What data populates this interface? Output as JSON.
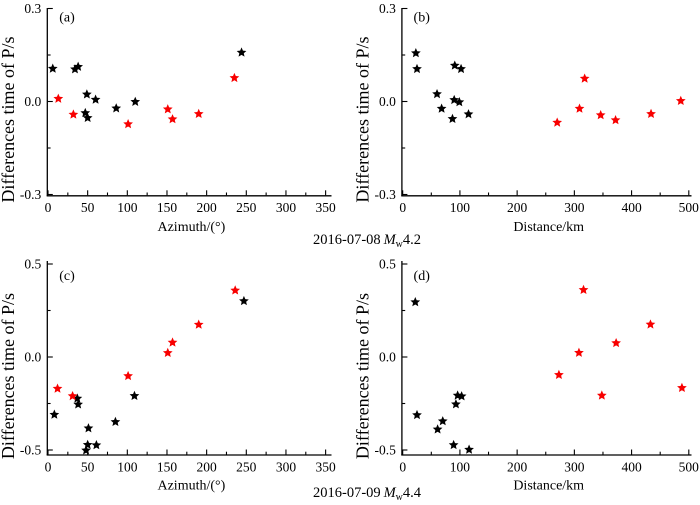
{
  "figure": {
    "background": "#ffffff",
    "series_colors": {
      "black": "#000000",
      "red": "#f80000"
    },
    "axis_color": "#000000",
    "text_color": "#000000"
  },
  "captions": [
    {
      "date": "2016-07-08",
      "mag_symbol": "M",
      "mag_sub": "w",
      "mag_value": "4.2"
    },
    {
      "date": "2016-07-09",
      "mag_symbol": "M",
      "mag_sub": "w",
      "mag_value": "4.4"
    }
  ],
  "chart_data": [
    {
      "id": "a",
      "letter": "(a)",
      "type": "scatter",
      "xlabel": "Azimuth/(°)",
      "ylabel": "Differences time of P/s",
      "xlim": [
        0,
        350
      ],
      "x_major_step": 50,
      "x_minor_step": 25,
      "ylim": [
        -0.3,
        0.3
      ],
      "y_major_step": 0.3,
      "y_minor_step": 0.15,
      "y_tick_decimals": 1,
      "legend": false,
      "grid": false,
      "series": [
        {
          "name": "black-stars",
          "color": "black",
          "marker": "star",
          "points": [
            [
              6,
              0.106
            ],
            [
              34,
              0.104
            ],
            [
              38,
              0.112
            ],
            [
              49,
              0.023
            ],
            [
              60,
              0.006
            ],
            [
              47,
              -0.037
            ],
            [
              50,
              -0.053
            ],
            [
              86,
              -0.022
            ],
            [
              110,
              -0.001
            ],
            [
              244,
              0.158
            ]
          ]
        },
        {
          "name": "red-stars",
          "color": "red",
          "marker": "star",
          "points": [
            [
              13,
              0.009
            ],
            [
              32,
              -0.042
            ],
            [
              101,
              -0.073
            ],
            [
              151,
              -0.025
            ],
            [
              157,
              -0.057
            ],
            [
              190,
              -0.04
            ],
            [
              235,
              0.076
            ]
          ]
        }
      ]
    },
    {
      "id": "b",
      "letter": "(b)",
      "type": "scatter",
      "xlabel": "Distance/km",
      "ylabel": "Differences time of P/s",
      "xlim": [
        0,
        500
      ],
      "x_major_step": 100,
      "x_minor_step": 50,
      "ylim": [
        -0.3,
        0.3
      ],
      "y_major_step": 0.3,
      "y_minor_step": 0.15,
      "y_tick_decimals": 1,
      "legend": false,
      "grid": false,
      "series": [
        {
          "name": "black-stars",
          "color": "black",
          "marker": "star",
          "points": [
            [
              23,
              0.156
            ],
            [
              25,
              0.105
            ],
            [
              91,
              0.116
            ],
            [
              102,
              0.105
            ],
            [
              60,
              0.024
            ],
            [
              90,
              0.005
            ],
            [
              99,
              -0.002
            ],
            [
              68,
              -0.023
            ],
            [
              87,
              -0.056
            ],
            [
              115,
              -0.041
            ]
          ]
        },
        {
          "name": "red-stars",
          "color": "red",
          "marker": "star",
          "points": [
            [
              270,
              -0.068
            ],
            [
              309,
              -0.023
            ],
            [
              318,
              0.074
            ],
            [
              346,
              -0.044
            ],
            [
              372,
              -0.06
            ],
            [
              434,
              -0.04
            ],
            [
              486,
              0.002
            ]
          ]
        }
      ]
    },
    {
      "id": "c",
      "letter": "(c)",
      "type": "scatter",
      "xlabel": "Azimuth/(°)",
      "ylabel": "Differences time of P/s",
      "xlim": [
        0,
        350
      ],
      "x_major_step": 50,
      "x_minor_step": 25,
      "ylim": [
        -0.5,
        0.5
      ],
      "y_major_step": 0.5,
      "y_minor_step": 0.25,
      "y_tick_decimals": 1,
      "legend": false,
      "grid": false,
      "series": [
        {
          "name": "black-stars",
          "color": "black",
          "marker": "star",
          "points": [
            [
              8,
              -0.31
            ],
            [
              37,
              -0.223
            ],
            [
              38,
              -0.255
            ],
            [
              51,
              -0.383
            ],
            [
              85,
              -0.349
            ],
            [
              50,
              -0.472
            ],
            [
              61,
              -0.474
            ],
            [
              48,
              -0.502
            ],
            [
              109,
              -0.209
            ],
            [
              247,
              0.301
            ]
          ]
        },
        {
          "name": "red-stars",
          "color": "red",
          "marker": "star",
          "points": [
            [
              12,
              -0.17
            ],
            [
              31,
              -0.21
            ],
            [
              101,
              -0.102
            ],
            [
              151,
              0.022
            ],
            [
              157,
              0.078
            ],
            [
              190,
              0.174
            ],
            [
              236,
              0.358
            ]
          ]
        }
      ]
    },
    {
      "id": "d",
      "letter": "(d)",
      "type": "scatter",
      "xlabel": "Distance/km",
      "ylabel": "Differences time of P/s",
      "xlim": [
        0,
        500
      ],
      "x_major_step": 100,
      "x_minor_step": 50,
      "ylim": [
        -0.5,
        0.5
      ],
      "y_major_step": 0.5,
      "y_minor_step": 0.25,
      "y_tick_decimals": 1,
      "legend": false,
      "grid": false,
      "series": [
        {
          "name": "black-stars",
          "color": "black",
          "marker": "star",
          "points": [
            [
              22,
              0.295
            ],
            [
              25,
              -0.312
            ],
            [
              61,
              -0.389
            ],
            [
              70,
              -0.345
            ],
            [
              89,
              -0.473
            ],
            [
              93,
              -0.254
            ],
            [
              96,
              -0.207
            ],
            [
              103,
              -0.211
            ],
            [
              116,
              -0.498
            ]
          ]
        },
        {
          "name": "red-stars",
          "color": "red",
          "marker": "star",
          "points": [
            [
              316,
              0.361
            ],
            [
              433,
              0.175
            ],
            [
              373,
              0.075
            ],
            [
              308,
              0.023
            ],
            [
              273,
              -0.096
            ],
            [
              488,
              -0.166
            ],
            [
              348,
              -0.207
            ]
          ]
        }
      ]
    }
  ]
}
